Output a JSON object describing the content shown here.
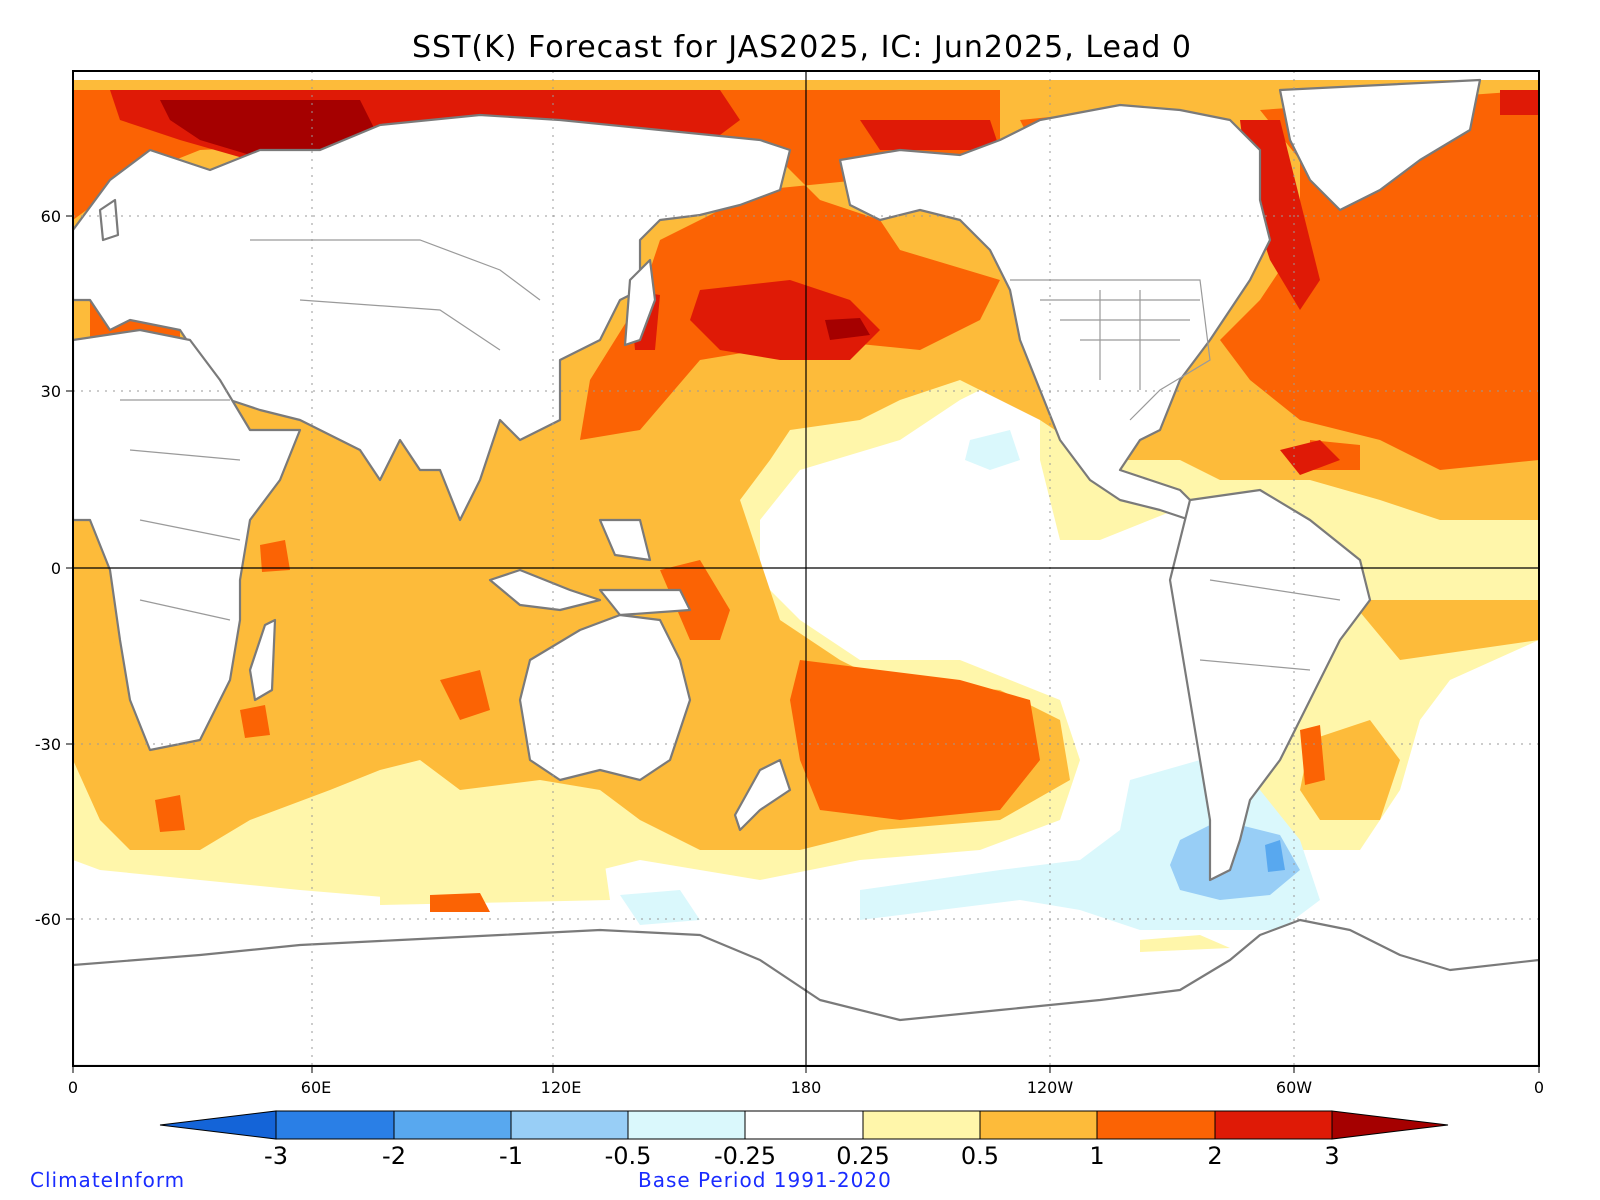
{
  "title": "SST(K) Forecast for JAS2025, IC: Jun2025, Lead 0",
  "map": {
    "variable": "Sea Surface Temperature anomaly",
    "units": "K",
    "projection": "cylindrical equidistant, 0 to 360 longitude",
    "lon_ticks": [
      "0",
      "60E",
      "120E",
      "180",
      "120W",
      "60W",
      "0"
    ],
    "lat_ticks": [
      "60",
      "30",
      "0",
      "-30",
      "-60"
    ],
    "lon_range": [
      0,
      360
    ],
    "lat_range": [
      -85,
      85
    ]
  },
  "colorbar": {
    "labels": [
      "-3",
      "-2",
      "-1",
      "-0.5",
      "-0.25",
      "0.25",
      "0.5",
      "1",
      "2",
      "3"
    ],
    "colors": {
      "lt_minus3": "#1464d8",
      "m3_m2": "#2a7fe6",
      "m2_m1": "#58a8ef",
      "m1_m05": "#98cef6",
      "m05_m025": "#daf8fc",
      "m025_025": "#ffffff",
      "p025_05": "#fff6aa",
      "p05_1": "#fdbb3a",
      "p1_2": "#fb6304",
      "p2_3": "#df1a06",
      "gt_3": "#a50000"
    }
  },
  "footer": {
    "left": "ClimateInform",
    "right": "Base Period 1991-2020"
  }
}
